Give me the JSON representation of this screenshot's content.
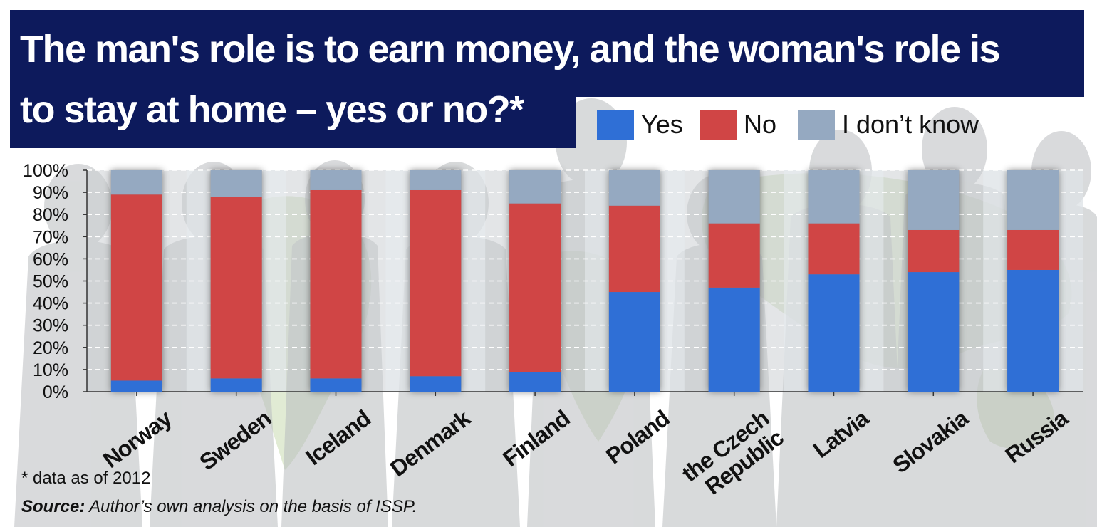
{
  "header": {
    "title_line1": "The man's role is to earn money, and the woman's role is",
    "title_line2": "to stay at home – yes or no?*"
  },
  "legend": [
    {
      "label": "Yes",
      "color": "#2f6fd6"
    },
    {
      "label": "No",
      "color": "#d04545"
    },
    {
      "label": "I don’t know",
      "color": "#95a9c1"
    }
  ],
  "footnotes": {
    "note": "* data as of 2012",
    "source_label": "Source:",
    "source_text": " Author’s own analysis on the basis of ISSP."
  },
  "chart_data": {
    "type": "bar",
    "stacked": true,
    "categories": [
      "Norway",
      "Sweden",
      "Iceland",
      "Denmark",
      "Finland",
      "Poland",
      "the Czech Republic",
      "Latvia",
      "Slovakia",
      "Russia"
    ],
    "series": [
      {
        "name": "Yes",
        "values": [
          5,
          6,
          6,
          7,
          9,
          45,
          47,
          53,
          54,
          55
        ]
      },
      {
        "name": "No",
        "values": [
          84,
          82,
          85,
          84,
          76,
          39,
          29,
          23,
          19,
          18
        ]
      },
      {
        "name": "I don’t know",
        "values": [
          11,
          12,
          9,
          9,
          15,
          16,
          24,
          24,
          27,
          27
        ]
      }
    ],
    "ylim": [
      0,
      100
    ],
    "yticks": [
      "0%",
      "10%",
      "20%",
      "30%",
      "40%",
      "50%",
      "60%",
      "70%",
      "80%",
      "90%",
      "100%"
    ],
    "grid": true
  }
}
